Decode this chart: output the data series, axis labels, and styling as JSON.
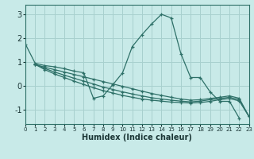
{
  "xlabel": "Humidex (Indice chaleur)",
  "bg_color": "#c8eae8",
  "grid_color": "#a8d0ce",
  "line_color": "#2e7068",
  "xlim": [
    0,
    23
  ],
  "ylim": [
    -1.6,
    3.4
  ],
  "yticks": [
    -1,
    0,
    1,
    2,
    3
  ],
  "xticks": [
    0,
    1,
    2,
    3,
    4,
    5,
    6,
    7,
    8,
    9,
    10,
    11,
    12,
    13,
    14,
    15,
    16,
    17,
    18,
    19,
    20,
    21,
    22,
    23
  ],
  "series": [
    {
      "x": [
        0,
        1,
        2,
        3,
        4,
        5,
        6,
        7,
        8,
        9,
        10,
        11,
        12,
        13,
        14,
        15,
        16,
        17,
        18,
        19,
        20,
        21,
        22
      ],
      "y": [
        1.75,
        0.95,
        0.85,
        0.8,
        0.72,
        0.62,
        0.55,
        -0.52,
        -0.42,
        0.05,
        0.55,
        1.65,
        2.15,
        2.6,
        3.0,
        2.85,
        1.35,
        0.35,
        0.35,
        -0.25,
        -0.65,
        -0.65,
        -1.35
      ]
    },
    {
      "x": [
        1,
        2,
        3,
        4,
        5,
        6,
        7,
        8,
        9,
        10,
        11,
        12,
        13,
        14,
        15,
        16,
        17,
        18,
        19,
        20,
        21,
        22,
        23
      ],
      "y": [
        0.9,
        0.78,
        0.68,
        0.58,
        0.48,
        0.38,
        0.28,
        0.18,
        0.08,
        -0.02,
        -0.12,
        -0.22,
        -0.32,
        -0.4,
        -0.48,
        -0.55,
        -0.6,
        -0.58,
        -0.53,
        -0.48,
        -0.42,
        -0.52,
        -1.28
      ]
    },
    {
      "x": [
        1,
        2,
        3,
        4,
        5,
        6,
        7,
        8,
        9,
        10,
        11,
        12,
        13,
        14,
        15,
        16,
        17,
        18,
        19,
        20,
        21,
        22,
        23
      ],
      "y": [
        0.9,
        0.73,
        0.58,
        0.45,
        0.32,
        0.2,
        0.08,
        -0.05,
        -0.15,
        -0.25,
        -0.34,
        -0.42,
        -0.5,
        -0.55,
        -0.6,
        -0.64,
        -0.67,
        -0.64,
        -0.58,
        -0.53,
        -0.48,
        -0.58,
        -1.28
      ]
    },
    {
      "x": [
        1,
        2,
        3,
        4,
        5,
        6,
        7,
        8,
        9,
        10,
        11,
        12,
        13,
        14,
        15,
        16,
        17,
        18,
        19,
        20,
        21,
        22,
        23
      ],
      "y": [
        0.9,
        0.68,
        0.5,
        0.35,
        0.2,
        0.06,
        -0.08,
        -0.2,
        -0.3,
        -0.4,
        -0.48,
        -0.55,
        -0.6,
        -0.64,
        -0.68,
        -0.7,
        -0.72,
        -0.7,
        -0.65,
        -0.58,
        -0.53,
        -0.63,
        -1.28
      ]
    }
  ]
}
